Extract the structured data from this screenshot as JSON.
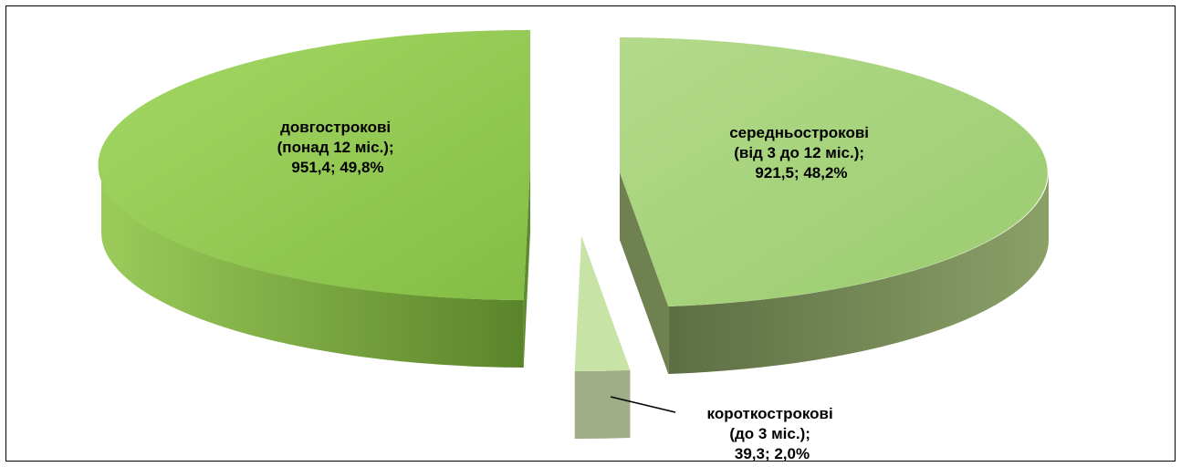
{
  "chart_data": {
    "type": "pie",
    "style": "3d-exploded",
    "title": "",
    "categories": [
      "довгострокові",
      "середньострокові",
      "короткострокові"
    ],
    "series": [
      {
        "values": [
          951.4,
          921.5,
          39.3
        ],
        "percents": [
          "49,8%",
          "48,2%",
          "2,0%"
        ]
      }
    ],
    "labels": [
      {
        "line1": "довгострокові",
        "line2": "(понад 12 міс.);",
        "line3": "951,4; 49,8%"
      },
      {
        "line1": "середньострокові",
        "line2": "(від 3 до 12 міс.);",
        "line3": "921,5; 48,2%"
      },
      {
        "line1": "короткострокові",
        "line2": "(до 3 міс.);",
        "line3": "39,3; 2,0%"
      }
    ],
    "colors": {
      "long_top": "#8cc34c",
      "long_side": "#5f8a2f",
      "mid_top": "#a3d17a",
      "mid_side": "#6f8150",
      "short_top": "#c8e3a6",
      "short_side": "#9fae86"
    },
    "legend": "none",
    "grid": false
  }
}
